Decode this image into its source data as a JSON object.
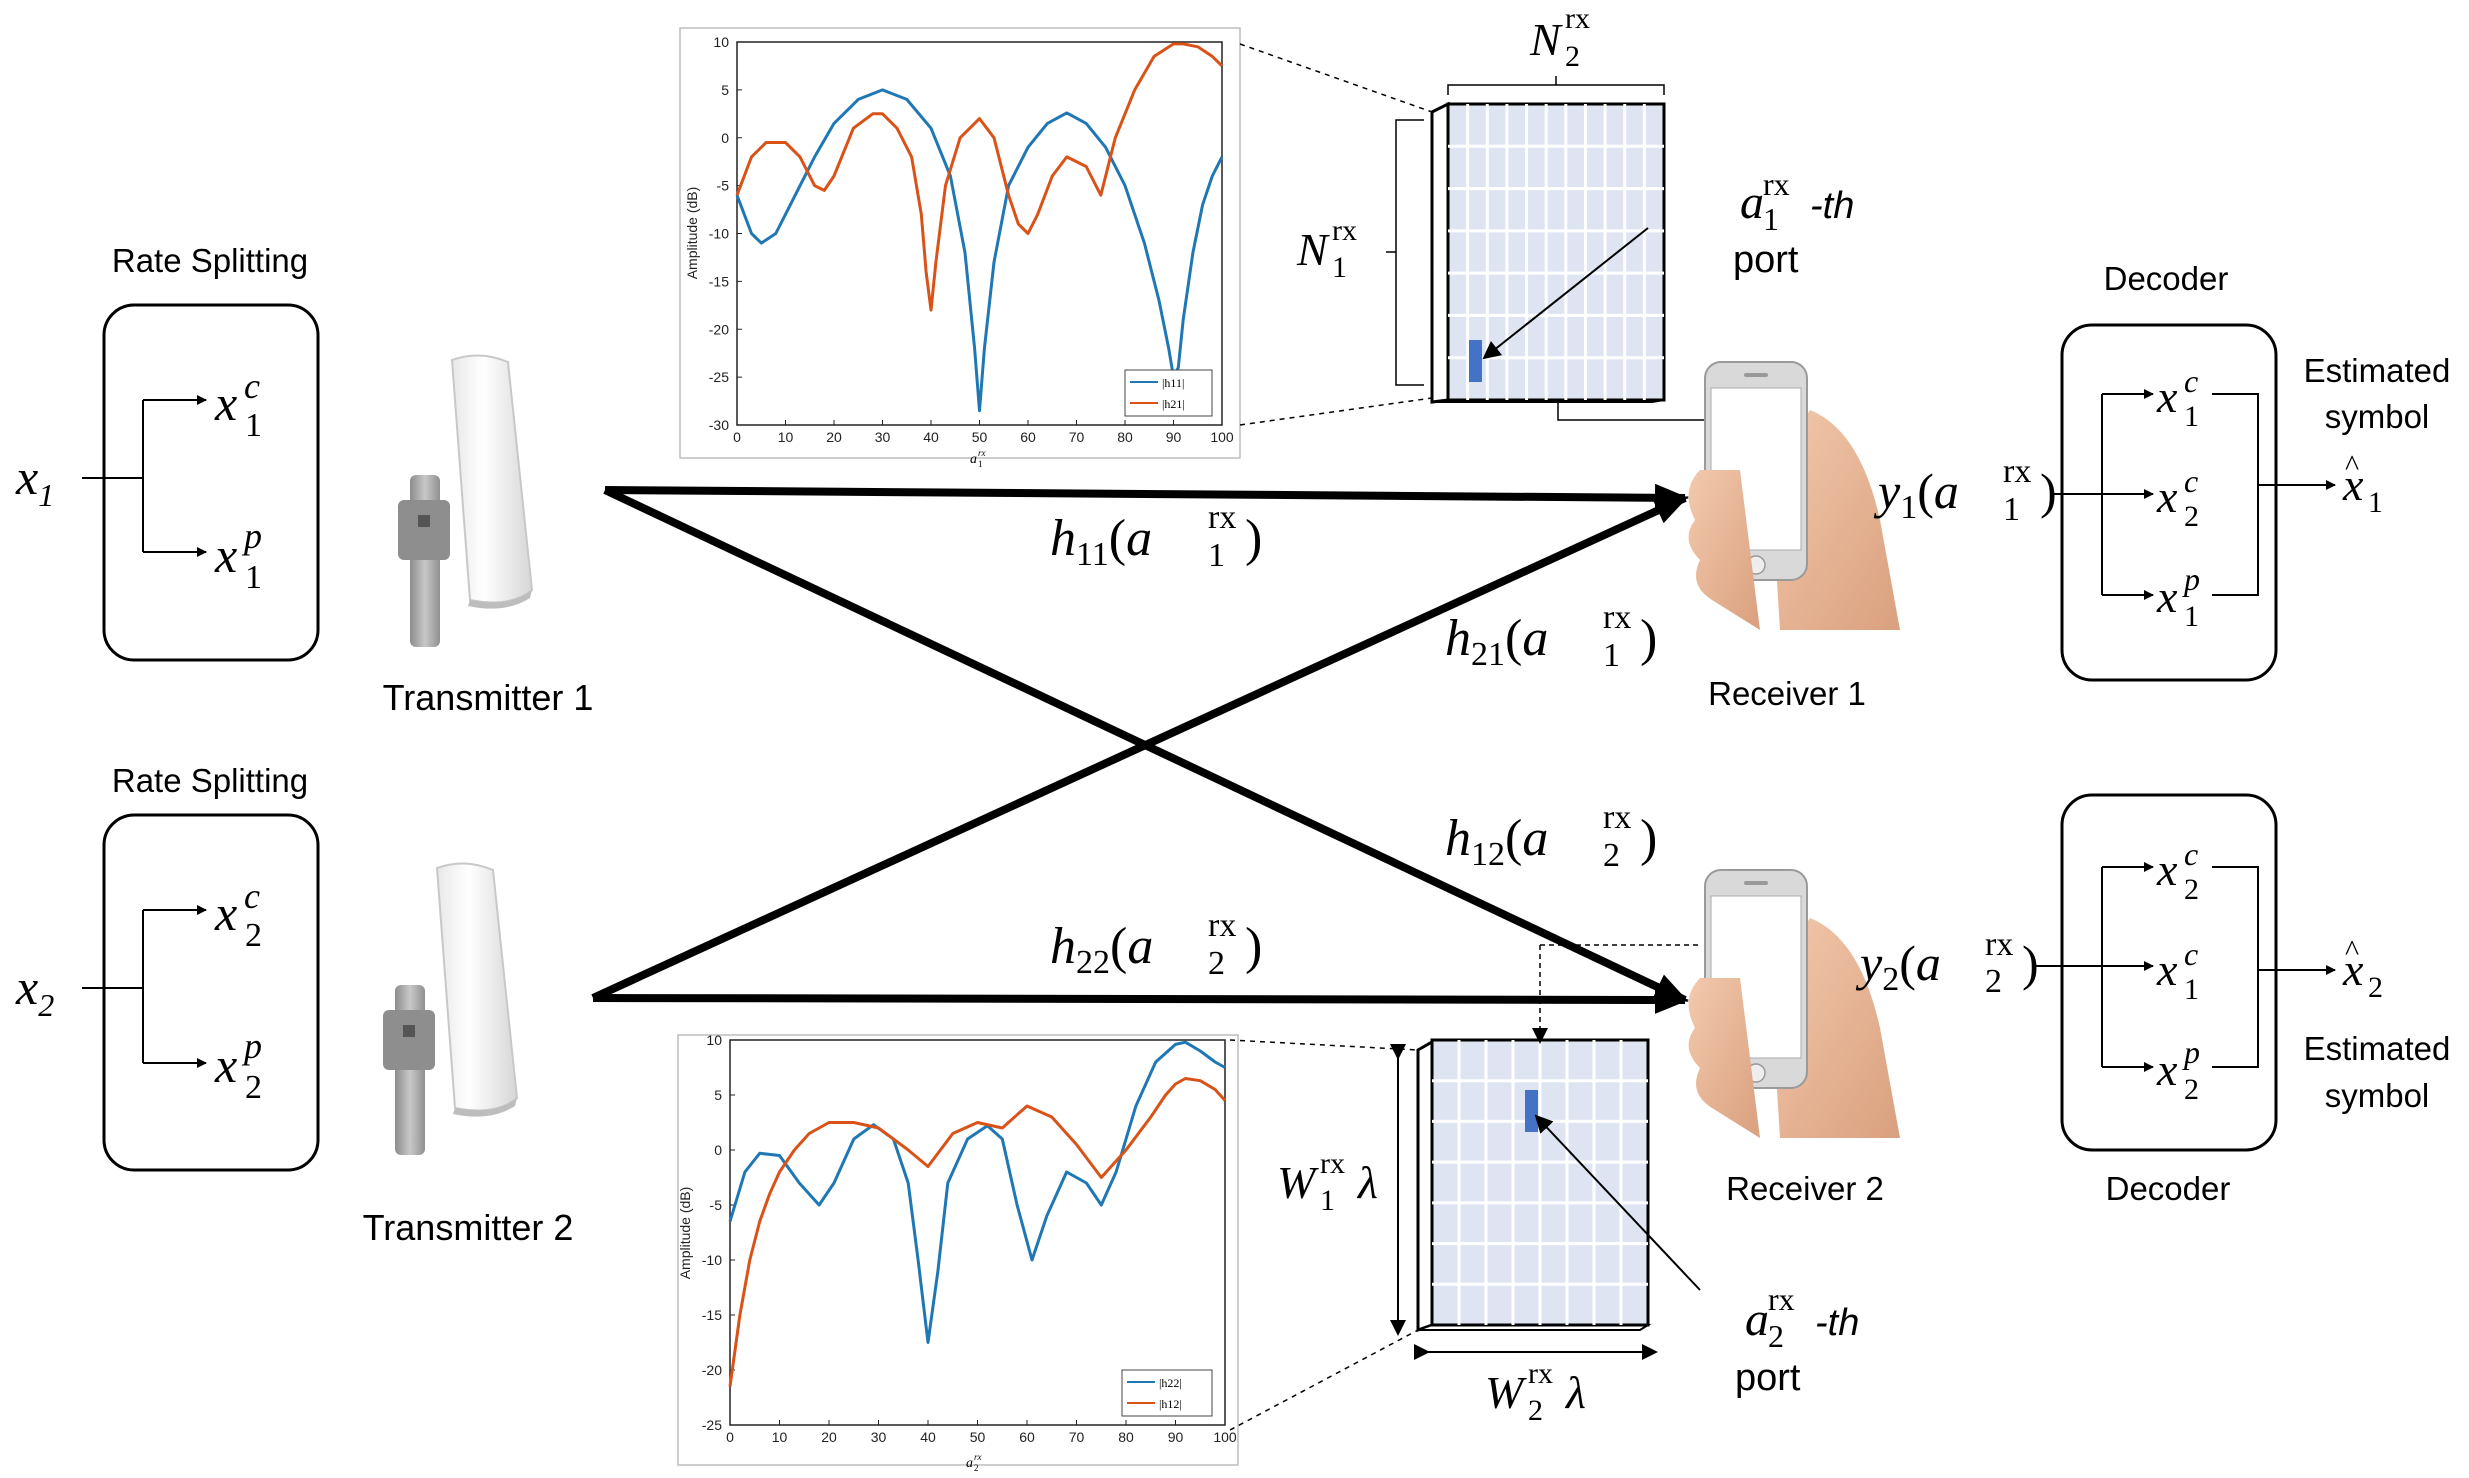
{
  "tx1": {
    "rate_label": "Rate Splitting",
    "label": "Transmitter 1",
    "input": {
      "base": "x",
      "sub": "1"
    },
    "outputs": [
      {
        "base": "x",
        "sub": "1",
        "sup": "c"
      },
      {
        "base": "x",
        "sub": "1",
        "sup": "p"
      }
    ]
  },
  "tx2": {
    "rate_label": "Rate Splitting",
    "label": "Transmitter 2",
    "input": {
      "base": "x",
      "sub": "2"
    },
    "outputs": [
      {
        "base": "x",
        "sub": "2",
        "sup": "c"
      },
      {
        "base": "x",
        "sub": "2",
        "sup": "p"
      }
    ]
  },
  "channels": {
    "h11": {
      "base": "h",
      "sub": "11",
      "arg_base": "a",
      "arg_sub": "1",
      "arg_sup": "rx"
    },
    "h21": {
      "base": "h",
      "sub": "21",
      "arg_base": "a",
      "arg_sub": "1",
      "arg_sup": "rx"
    },
    "h12": {
      "base": "h",
      "sub": "12",
      "arg_base": "a",
      "arg_sub": "2",
      "arg_sup": "rx"
    },
    "h22": {
      "base": "h",
      "sub": "22",
      "arg_base": "a",
      "arg_sub": "2",
      "arg_sup": "rx"
    }
  },
  "rx1": {
    "label": "Receiver 1",
    "signal": {
      "base": "y",
      "sub": "1",
      "arg_base": "a",
      "arg_sub": "1",
      "arg_sup": "rx"
    },
    "decoder_label": "Decoder",
    "decoder_outputs": [
      {
        "base": "x",
        "sub": "1",
        "sup": "c"
      },
      {
        "base": "x",
        "sub": "2",
        "sup": "c"
      },
      {
        "base": "x",
        "sub": "1",
        "sup": "p"
      }
    ],
    "estimate": {
      "base": "x",
      "sub": "1"
    },
    "estimate_label_1": "Estimated",
    "estimate_label_2": "symbol"
  },
  "rx2": {
    "label": "Receiver 2",
    "signal": {
      "base": "y",
      "sub": "2",
      "arg_base": "a",
      "arg_sub": "2",
      "arg_sup": "rx"
    },
    "decoder_label": "Decoder",
    "decoder_outputs": [
      {
        "base": "x",
        "sub": "2",
        "sup": "c"
      },
      {
        "base": "x",
        "sub": "1",
        "sup": "c"
      },
      {
        "base": "x",
        "sub": "2",
        "sup": "p"
      }
    ],
    "estimate": {
      "base": "x",
      "sub": "2"
    },
    "estimate_label_1": "Estimated",
    "estimate_label_2": "symbol"
  },
  "fas1": {
    "n2": {
      "base": "N",
      "sub": "2",
      "sup": "rx"
    },
    "n1": {
      "base": "N",
      "sub": "1",
      "sup": "rx"
    },
    "port_sym": {
      "base": "a",
      "sub": "1",
      "sup": "rx"
    },
    "port_suffix": "-th",
    "port_word": "port"
  },
  "fas2": {
    "w1": {
      "base": "W",
      "sub": "1",
      "sup": "rx",
      "tail": "λ"
    },
    "w2": {
      "base": "W",
      "sub": "2",
      "sup": "rx",
      "tail": "λ"
    },
    "port_sym": {
      "base": "a",
      "sub": "2",
      "sup": "rx"
    },
    "port_suffix": "-th",
    "port_word": "port"
  },
  "colors": {
    "blue": "#1f77b4",
    "orange": "#d95319",
    "port": "#4472c4",
    "grid_bg": "#dfe4f2"
  },
  "chart_data": [
    {
      "type": "line",
      "ylabel": "Amplitude (dB)",
      "xlabel": {
        "base": "a",
        "sub": "1",
        "sup": "rx"
      },
      "xlim": [
        0,
        100
      ],
      "ylim": [
        -30,
        10
      ],
      "xticks": [
        "0",
        "10",
        "20",
        "30",
        "40",
        "50",
        "60",
        "70",
        "80",
        "90",
        "100"
      ],
      "yticks": [
        "10",
        "5",
        "0",
        "-5",
        "-10",
        "-15",
        "-20",
        "-25",
        "-30"
      ],
      "legend": [
        "|h11|",
        "|h21|"
      ],
      "series": [
        {
          "name": "|h11|",
          "color": "#1f77b4",
          "x": [
            0,
            3,
            5,
            8,
            12,
            16,
            20,
            25,
            30,
            35,
            40,
            44,
            47,
            49,
            50,
            51,
            53,
            56,
            60,
            64,
            68,
            72,
            76,
            80,
            84,
            87,
            89,
            90,
            91,
            92,
            94,
            96,
            98,
            100
          ],
          "y": [
            -6,
            -10,
            -11,
            -10,
            -6,
            -2,
            1.5,
            4,
            5,
            4,
            1,
            -4,
            -12,
            -22,
            -28.5,
            -22,
            -13,
            -5,
            -1,
            1.5,
            2.6,
            1.5,
            -1,
            -5,
            -11,
            -17,
            -22,
            -25,
            -24,
            -19,
            -12,
            -7,
            -4,
            -2
          ]
        },
        {
          "name": "|h21|",
          "color": "#d95319",
          "x": [
            0,
            3,
            6,
            10,
            13,
            16,
            18,
            20,
            24,
            28,
            30,
            33,
            36,
            38,
            39,
            40,
            41,
            43,
            46,
            50,
            53,
            56,
            58,
            60,
            62,
            65,
            68,
            72,
            75,
            78,
            82,
            86,
            90,
            92,
            95,
            98,
            100
          ],
          "y": [
            -6,
            -2,
            -0.5,
            -0.5,
            -2,
            -5,
            -5.5,
            -4,
            1,
            2.5,
            2.5,
            1,
            -2,
            -8,
            -14,
            -18,
            -13,
            -5,
            0,
            2,
            0,
            -6,
            -9,
            -10,
            -8,
            -4,
            -2,
            -3,
            -6,
            0,
            5,
            8.5,
            9.8,
            9.8,
            9.5,
            8.5,
            7.5
          ]
        }
      ]
    },
    {
      "type": "line",
      "ylabel": "Amplitude (dB)",
      "xlabel": {
        "base": "a",
        "sub": "2",
        "sup": "rx"
      },
      "xlim": [
        0,
        100
      ],
      "ylim": [
        -25,
        10
      ],
      "xticks": [
        "0",
        "10",
        "20",
        "30",
        "40",
        "50",
        "60",
        "70",
        "80",
        "90",
        "100"
      ],
      "yticks": [
        "10",
        "5",
        "0",
        "-5",
        "-10",
        "-15",
        "-20",
        "-25"
      ],
      "legend": [
        "|h22|",
        "|h12|"
      ],
      "series": [
        {
          "name": "|h22|",
          "color": "#1f77b4",
          "x": [
            0,
            3,
            6,
            10,
            14,
            18,
            21,
            25,
            29,
            33,
            36,
            38,
            40,
            42,
            44,
            48,
            52,
            55,
            58,
            61,
            64,
            68,
            72,
            75,
            78,
            82,
            86,
            90,
            92,
            95,
            98,
            100
          ],
          "y": [
            -6.5,
            -2,
            -0.3,
            -0.5,
            -3,
            -5,
            -3,
            1,
            2.3,
            1,
            -3,
            -10,
            -17.5,
            -11,
            -3,
            1,
            2.2,
            1,
            -5,
            -10,
            -6,
            -2,
            -3,
            -5,
            -2,
            4,
            8,
            9.6,
            9.8,
            9,
            8,
            7.5
          ]
        },
        {
          "name": "|h12|",
          "color": "#d95319",
          "x": [
            0,
            2,
            4,
            6,
            8,
            10,
            13,
            16,
            20,
            25,
            30,
            33,
            36,
            40,
            45,
            50,
            55,
            60,
            65,
            70,
            75,
            80,
            85,
            88,
            90,
            92,
            95,
            98,
            100
          ],
          "y": [
            -21.5,
            -15,
            -10,
            -6.5,
            -4,
            -2,
            0,
            1.5,
            2.5,
            2.5,
            2,
            1,
            0,
            -1.5,
            1.5,
            2.5,
            2,
            4,
            3,
            0.5,
            -2.5,
            0,
            3,
            5,
            6,
            6.5,
            6.3,
            5.5,
            4.5
          ]
        }
      ]
    }
  ]
}
